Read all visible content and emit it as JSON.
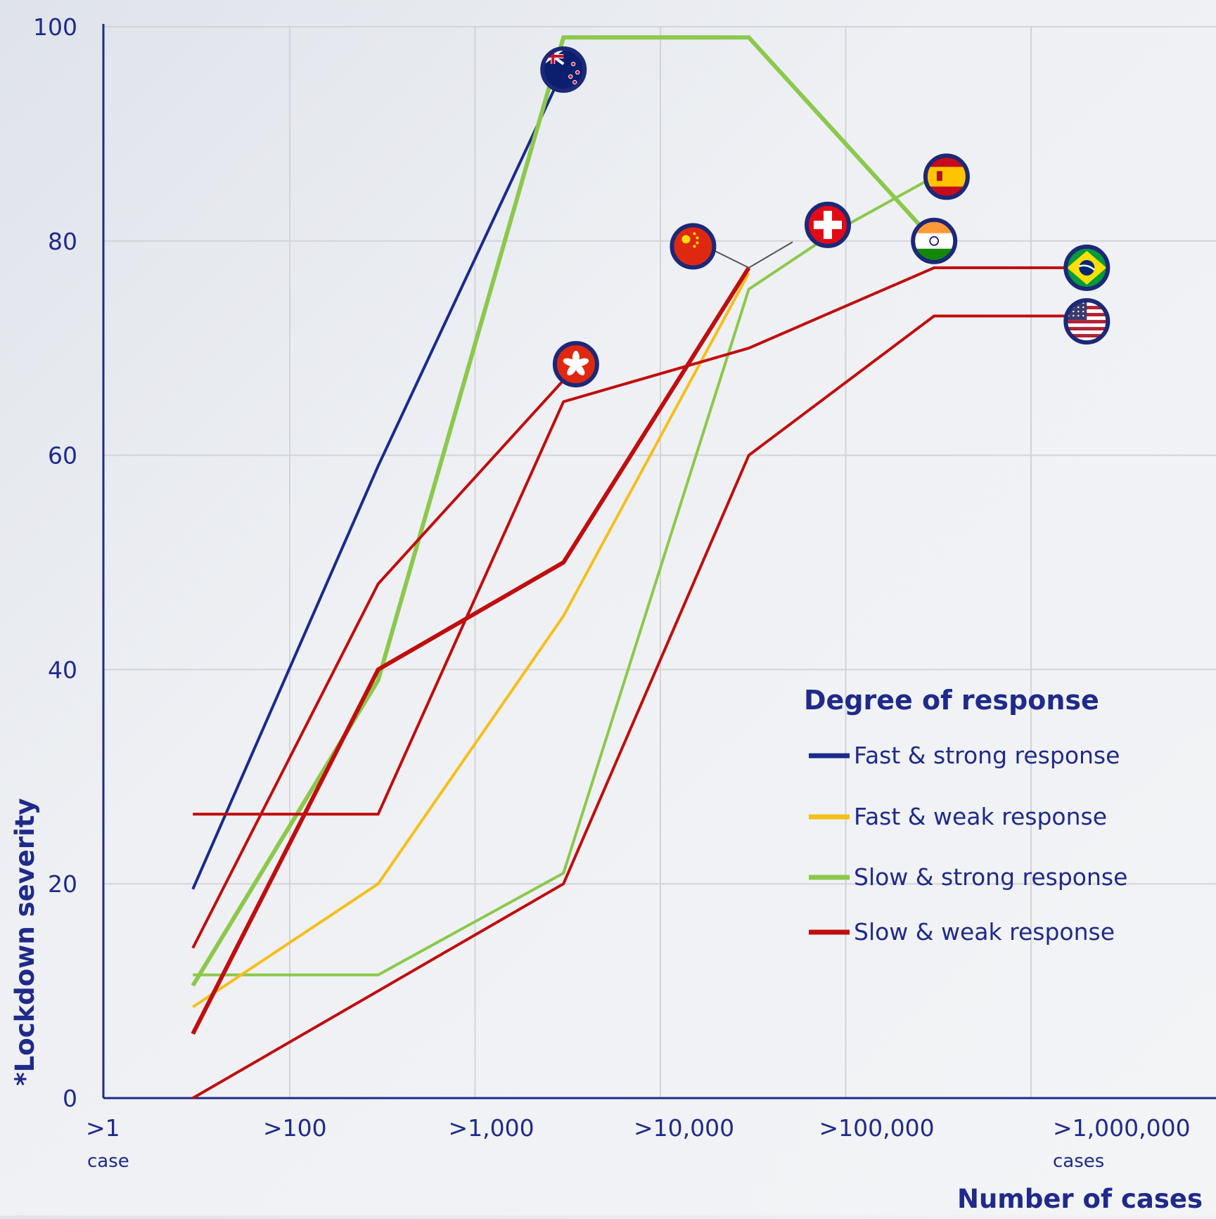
{
  "chart_data": {
    "type": "line",
    "ylabel": "*Lockdown severity",
    "xlabel": "Number of cases",
    "yticks": [
      0,
      20,
      40,
      60,
      80,
      100
    ],
    "ylim": [
      0,
      100
    ],
    "x_scale": "log",
    "xticks": [
      {
        "v": 1,
        "label": ">1",
        "sub": "case"
      },
      {
        "v": 100,
        "label": ">100",
        "sub": ""
      },
      {
        "v": 1000,
        "label": ">1,000",
        "sub": ""
      },
      {
        "v": 10000,
        "label": ">10,000",
        "sub": ""
      },
      {
        "v": 100000,
        "label": ">100,000",
        "sub": ""
      },
      {
        "v": 1000000,
        "label": ">1,000,000",
        "sub": "cases"
      }
    ],
    "grid": true,
    "legend": {
      "title": "Degree of response",
      "position": "lower-right",
      "entries": [
        {
          "label": "Fast & strong response",
          "color": "#1a2a8c"
        },
        {
          "label": "Fast & weak response",
          "color": "#f5bf1a"
        },
        {
          "label": "Slow & strong response",
          "color": "#8cc84b"
        },
        {
          "label": "Slow & weak response",
          "color": "#c00d0d"
        }
      ]
    },
    "series": [
      {
        "group": "Fast & strong response",
        "color": "#1a2a8c",
        "width": 4,
        "x": [
          30,
          300,
          3000
        ],
        "y": [
          19.5,
          59,
          96
        ]
      },
      {
        "group": "Slow & strong response",
        "color": "#8cc84b",
        "width": 6,
        "x": [
          30,
          300,
          3000,
          30000,
          300000
        ],
        "y": [
          10.5,
          39,
          99,
          99,
          80
        ]
      },
      {
        "group": "Slow & strong response",
        "color": "#8cc84b",
        "width": 4,
        "x": [
          30,
          300,
          3000,
          30000,
          90000,
          300000
        ],
        "y": [
          11.5,
          11.5,
          21,
          75.5,
          81,
          86
        ]
      },
      {
        "group": "Fast & weak response",
        "color": "#f5bf1a",
        "width": 4,
        "x": [
          30,
          300,
          3000,
          30000
        ],
        "y": [
          8.5,
          20,
          45,
          77
        ]
      },
      {
        "group": "Slow & weak response",
        "color": "#c00d0d",
        "width": 4,
        "x": [
          30,
          300,
          3000,
          30000,
          300000,
          2000000
        ],
        "y": [
          26.5,
          26.5,
          65,
          70,
          77.5,
          77.5
        ]
      },
      {
        "group": "Slow & weak response",
        "color": "#c00d0d",
        "width": 4,
        "x": [
          30,
          300,
          3000
        ],
        "y": [
          14,
          48,
          67
        ]
      },
      {
        "group": "Slow & weak response",
        "color": "#c00d0d",
        "width": 4,
        "x": [
          30,
          300,
          3000,
          30000,
          300000,
          2000000
        ],
        "y": [
          0,
          10,
          20,
          60,
          73,
          73
        ]
      },
      {
        "group": "Slow & weak response",
        "color": "#c00d0d",
        "width": 6,
        "x": [
          30,
          300,
          3000,
          30000
        ],
        "y": [
          6,
          40,
          50,
          77.5
        ]
      }
    ],
    "flag_markers": [
      {
        "icon": "new-zealand-flag-icon",
        "x": 3000,
        "y": 96
      },
      {
        "icon": "hong-kong-flag-icon",
        "x": 3500,
        "y": 68.5
      },
      {
        "icon": "china-flag-icon",
        "x": 15000,
        "y": 79.5
      },
      {
        "icon": "switzerland-flag-icon",
        "x": 80000,
        "y": 81.5
      },
      {
        "icon": "spain-flag-icon",
        "x": 350000,
        "y": 86
      },
      {
        "icon": "india-flag-icon",
        "x": 300000,
        "y": 80
      },
      {
        "icon": "brazil-flag-icon",
        "x": 2000000,
        "y": 77.5
      },
      {
        "icon": "usa-flag-icon",
        "x": 2000000,
        "y": 72.5
      }
    ]
  }
}
